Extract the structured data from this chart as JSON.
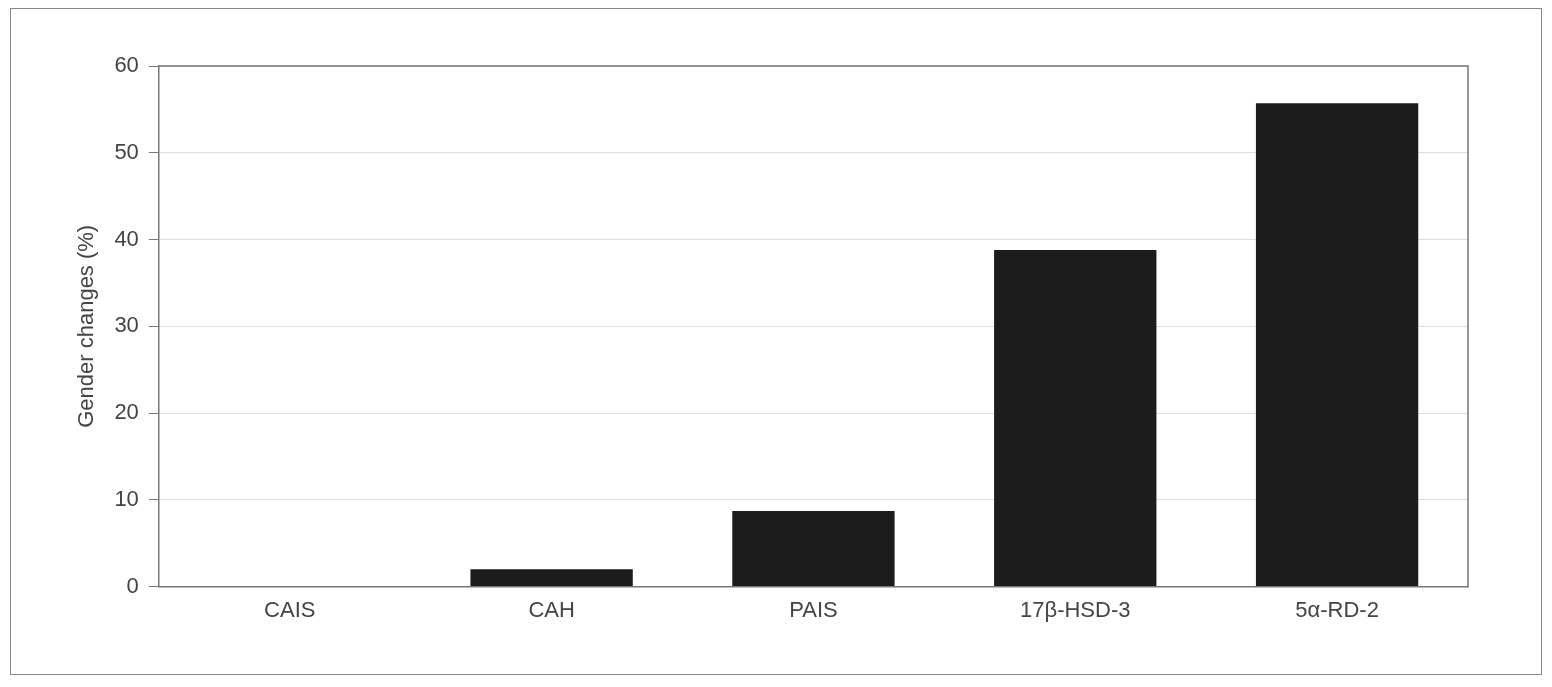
{
  "chart_data": {
    "type": "bar",
    "ylabel": "Gender changes (%)",
    "categories": [
      "CAIS",
      "CAH",
      "PAIS",
      "17β-HSD-3",
      "5α-RD-2"
    ],
    "values": [
      0,
      2,
      8.7,
      38.8,
      55.7
    ],
    "color": "#1c1c1c",
    "ylim": [
      0,
      60
    ],
    "yticks": [
      0,
      10,
      20,
      30,
      40,
      50,
      60
    ],
    "grid": "y"
  }
}
